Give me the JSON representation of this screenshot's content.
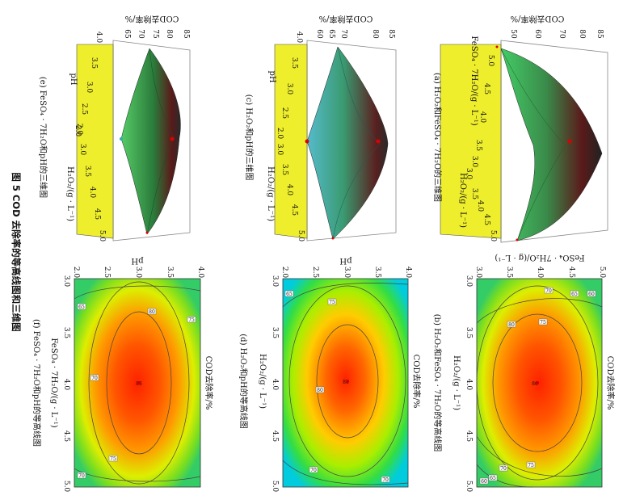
{
  "figure_caption": "图 5   COD 去除率的等高线图和三维图",
  "panels": {
    "a": {
      "caption": "(a) H₂O₂和FeSO₄ · 7H₂O的三维图",
      "z_label": "COD去除率/%",
      "z_ticks": [
        "50",
        "60",
        "70",
        "80",
        "85"
      ],
      "x_label": "FeSO₄ · 7H₂O/(g · L⁻¹)",
      "x_ticks": [
        "5.0",
        "4.5",
        "4.0",
        "3.5",
        "3.0"
      ],
      "y_label": "H₂O₂/(g · L⁻¹)",
      "y_ticks": [
        "3.0",
        "3.5",
        "4.0",
        "4.5",
        "5.0"
      ]
    },
    "b": {
      "caption": "(b) H₂O₂和FeSO₄ · 7H₂O的等高线图",
      "title": "COD去除率/%",
      "x_label": "H₂O₂/(g · L⁻¹)",
      "x_ticks": [
        "3.0",
        "3.5",
        "4.0",
        "4.5",
        "5.0"
      ],
      "y_label": "FeSO₄ · 7H₂O/(g · L⁻¹)",
      "y_ticks": [
        "3.0",
        "3.5",
        "4.0",
        "4.5",
        "5.0"
      ],
      "labels": [
        "70",
        "75",
        "80",
        "75",
        "70",
        "65",
        "60",
        "86",
        "65",
        "60"
      ]
    },
    "c": {
      "caption": "(c) H₂O₂和pH的三维图",
      "z_label": "COD去除率/%",
      "z_ticks": [
        "60",
        "65",
        "70",
        "80",
        "85"
      ],
      "x_label": "pH",
      "x_ticks": [
        "4.0",
        "3.5",
        "3.0",
        "2.5",
        "2.0"
      ],
      "y_label": "H₂O₂/(g · L⁻¹)",
      "y_ticks": [
        "3.0",
        "3.5",
        "4.0",
        "4.5",
        "5.0"
      ]
    },
    "d": {
      "caption": "(d) H₂O₂和pH的等高线图",
      "title": "COD去除率/%",
      "x_label": "H₂O₂/(g · L⁻¹)",
      "x_ticks": [
        "3.0",
        "3.5",
        "4.0",
        "4.5",
        "5.0"
      ],
      "y_label": "pH",
      "y_ticks": [
        "2.0",
        "2.5",
        "3.0",
        "3.5",
        "4.0"
      ],
      "labels": [
        "65",
        "75",
        "70",
        "80",
        "86",
        "70"
      ]
    },
    "e": {
      "caption": "(e) FeSO₄ · 7H₂O和pH的三维图",
      "z_label": "COD去除率/%",
      "z_ticks": [
        "65",
        "70",
        "75",
        "80",
        "85"
      ],
      "x_label": "pH",
      "x_ticks": [
        "4.0",
        "3.5",
        "3.0",
        "2.5",
        "2.0"
      ],
      "y_label": "H₂O₂/(g · L⁻¹)",
      "y_ticks": [
        "2.0",
        "3.0",
        "3.5",
        "4.0",
        "4.5",
        "5.0"
      ]
    },
    "f": {
      "caption": "(f) FeSO₄ · 7H₂O和pH的等高线图",
      "title": "COD去除率/%",
      "x_label": "FeSO₄ · 7H₂O/(g · L⁻¹)",
      "x_ticks": [
        "3.0",
        "3.5",
        "4.0",
        "4.5",
        "5.0"
      ],
      "y_label": "pH",
      "y_ticks": [
        "2.0",
        "2.5",
        "3.0",
        "3.5",
        "4.0"
      ],
      "labels": [
        "65",
        "70",
        "75",
        "80",
        "86",
        "75",
        "70"
      ]
    }
  }
}
